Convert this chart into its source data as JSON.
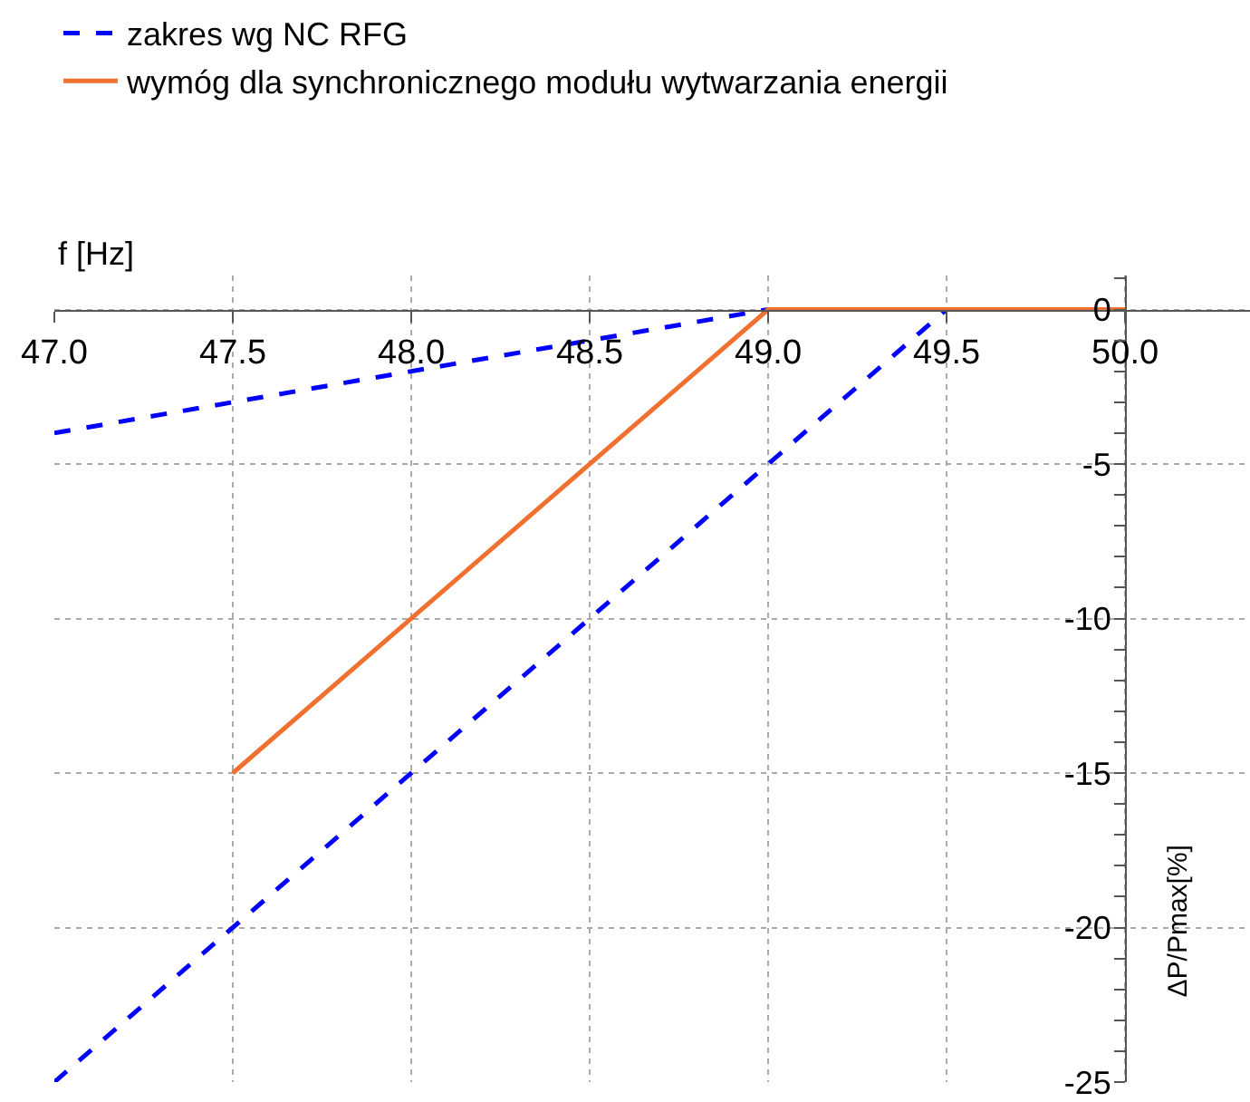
{
  "chart_data": {
    "type": "line",
    "xlabel": "f [Hz]",
    "ylabel": "ΔP/Pmax[%]",
    "xlim": [
      47,
      50.35
    ],
    "ylim": [
      -25,
      1.1
    ],
    "xticks": [
      {
        "value": 47,
        "label": "47.0"
      },
      47.5,
      {
        "value": 48,
        "label": "48.0"
      },
      48.5,
      {
        "value": 49,
        "label": "49.0"
      },
      49.5,
      {
        "value": 50,
        "label": "50.0"
      }
    ],
    "yticks": [
      0,
      -5,
      -10,
      -15,
      -20,
      -25
    ],
    "grid": true,
    "legend": "top left",
    "marker": "none",
    "series": [
      {
        "name": "zakres wg NC RFG",
        "color": "#0000ff",
        "line_style": "dashed",
        "x": [
          47,
          49,
          null,
          47,
          49.5
        ],
        "values": [
          -4,
          0,
          null,
          -25,
          0
        ]
      },
      {
        "name": "wymóg dla synchronicznego modułu wytwarzania energii",
        "color": "#f07030",
        "line_style": "solid",
        "x": [
          47.5,
          49,
          50
        ],
        "values": [
          -15,
          0,
          0
        ]
      }
    ]
  }
}
